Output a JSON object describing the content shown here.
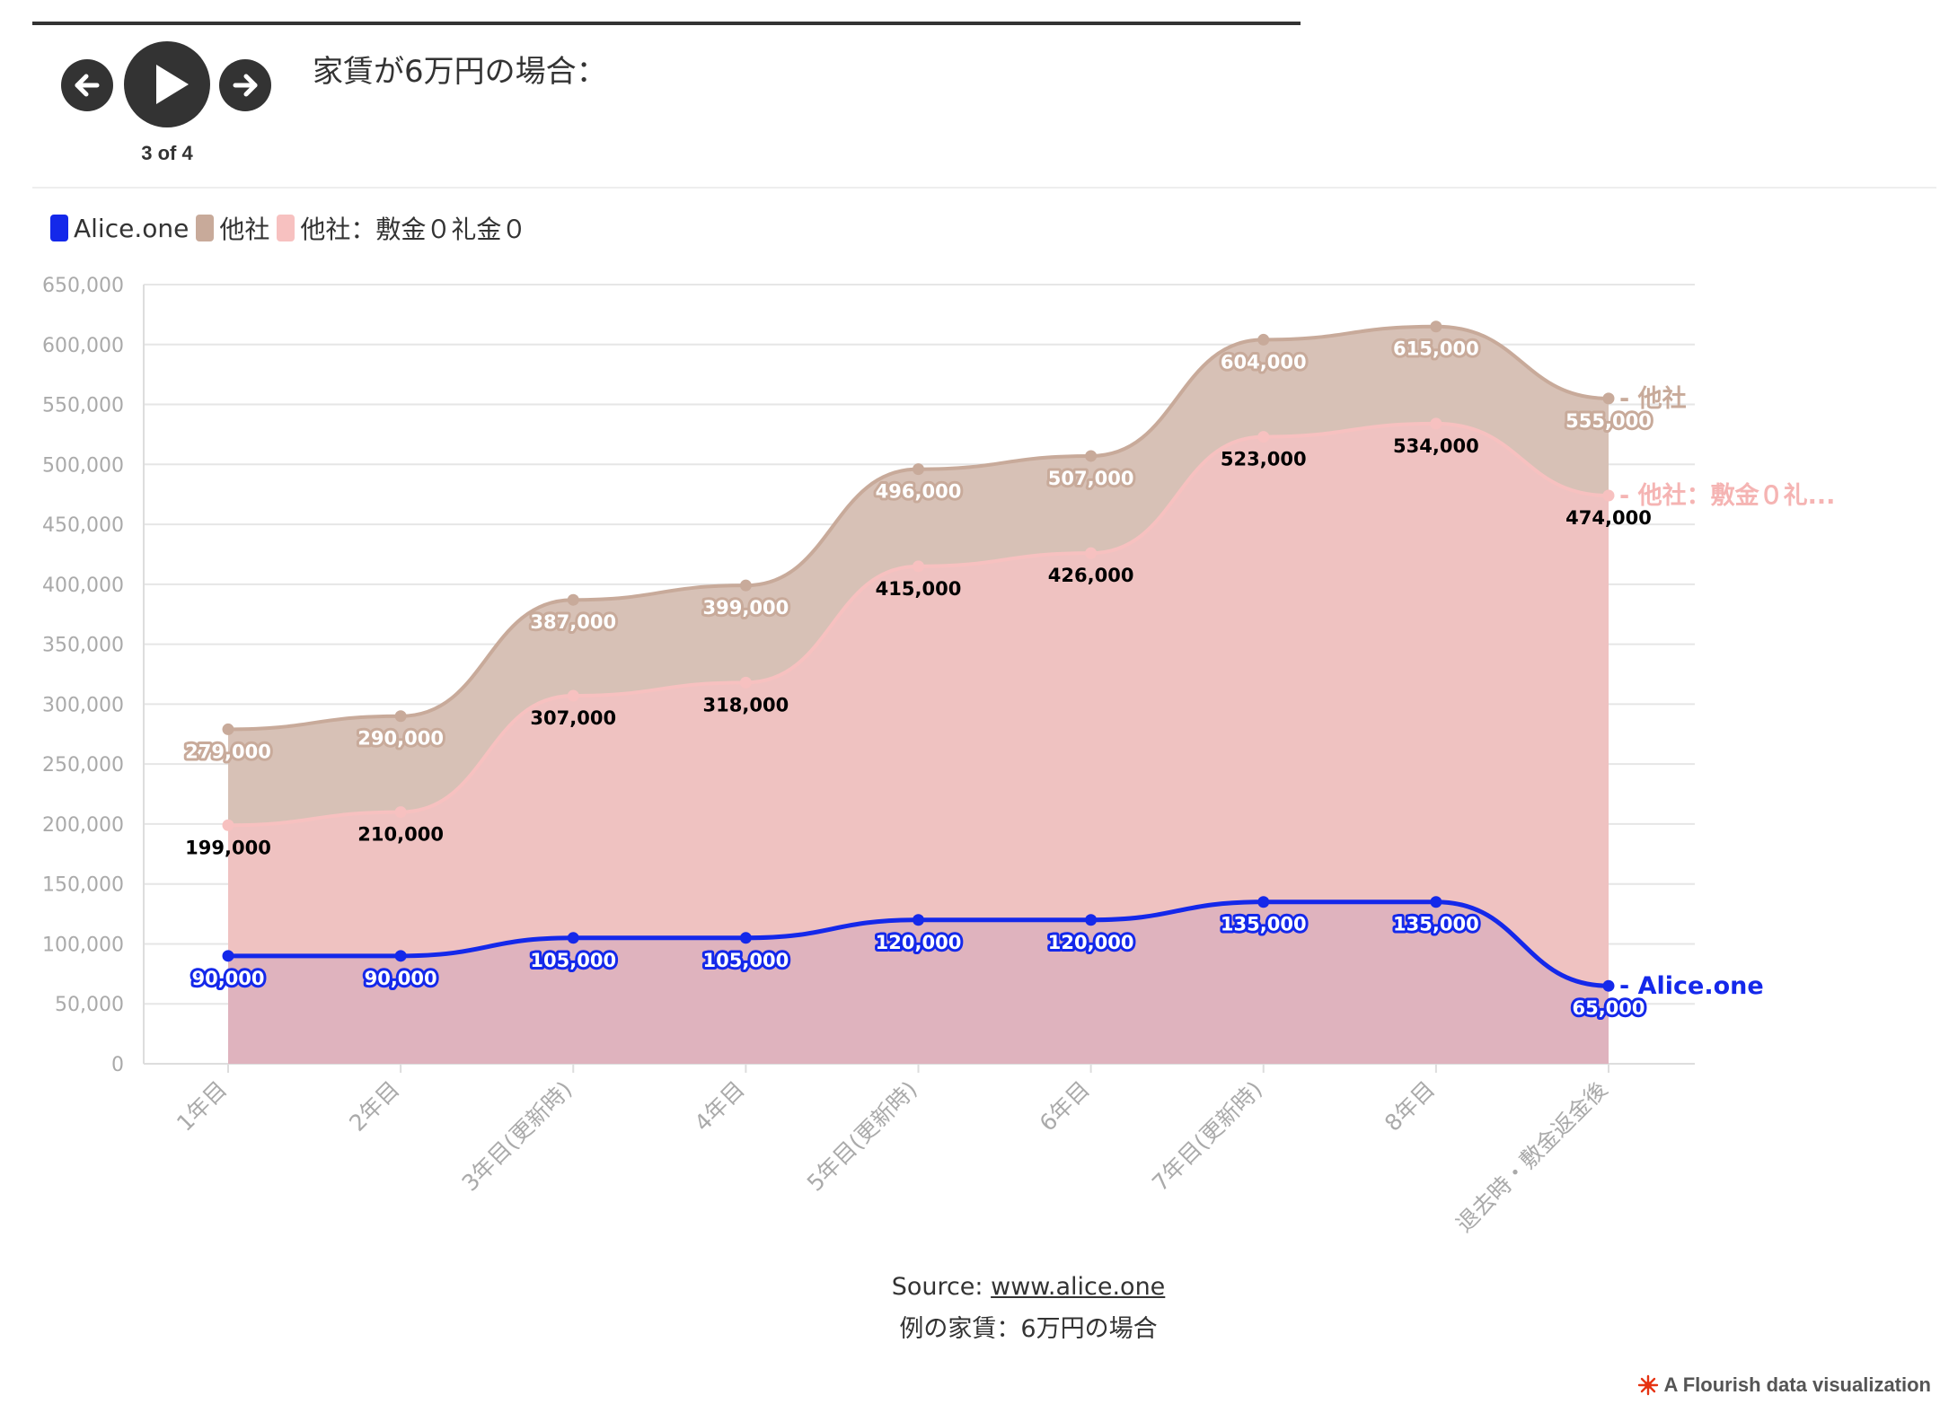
{
  "controls": {
    "step_label": "3 of 4"
  },
  "slide_title": "家賃が6万円の場合：",
  "legend": [
    {
      "label": "Alice.one",
      "color": "#1428ea"
    },
    {
      "label": "他社",
      "color": "#c8aa9a"
    },
    {
      "label": "他社：敷金０礼金０",
      "color": "#f7c1c0"
    }
  ],
  "chart_data": {
    "type": "area",
    "categories": [
      "1年目",
      "2年目",
      "3年目(更新時)",
      "4年目",
      "5年目(更新時)",
      "6年目",
      "7年目(更新時)",
      "8年目",
      "退去時・敷金返金後"
    ],
    "series": [
      {
        "name": "他社",
        "color": "#c8aa9a",
        "fill": "#d7c1b6",
        "values": [
          279000,
          290000,
          387000,
          399000,
          496000,
          507000,
          604000,
          615000,
          555000
        ],
        "labels": [
          "279,000",
          "290,000",
          "387,000",
          "399,000",
          "496,000",
          "507,000",
          "604,000",
          "615,000",
          "555,000"
        ],
        "end_label": "他社"
      },
      {
        "name": "他社：敷金０礼金０",
        "color": "#f7c1c0",
        "fill": "#efc2c1",
        "values": [
          199000,
          210000,
          307000,
          318000,
          415000,
          426000,
          523000,
          534000,
          474000
        ],
        "labels": [
          "199,000",
          "210,000",
          "307,000",
          "318,000",
          "415,000",
          "426,000",
          "523,000",
          "534,000",
          "474,000"
        ],
        "end_label": "他社：敷金０礼..."
      },
      {
        "name": "Alice.one",
        "color": "#1428ea",
        "fill": "#dfb3be",
        "values": [
          90000,
          90000,
          105000,
          105000,
          120000,
          120000,
          135000,
          135000,
          65000
        ],
        "labels": [
          "90,000",
          "90,000",
          "105,000",
          "105,000",
          "120,000",
          "120,000",
          "135,000",
          "135,000",
          "65,000"
        ],
        "end_label": "Alice.one"
      }
    ],
    "ylim": [
      0,
      650000
    ],
    "yticks": [
      0,
      50000,
      100000,
      150000,
      200000,
      250000,
      300000,
      350000,
      400000,
      450000,
      500000,
      550000,
      600000,
      650000
    ],
    "ytick_labels": [
      "0",
      "50,000",
      "100,000",
      "150,000",
      "200,000",
      "250,000",
      "300,000",
      "350,000",
      "400,000",
      "450,000",
      "500,000",
      "550,000",
      "600,000",
      "650,000"
    ],
    "grid": true
  },
  "footer": {
    "source_prefix": "Source: ",
    "source_link": "www.alice.one",
    "note": "例の家賃：6万円の場合"
  },
  "credit": "A Flourish data visualization"
}
